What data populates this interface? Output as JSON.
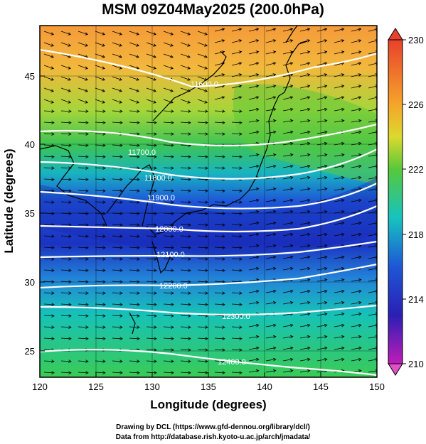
{
  "title": "MSM 09Z04May2025 (200.0hPa)",
  "x_axis": {
    "label": "Longitude (degrees)",
    "ticks": [
      "120",
      "125",
      "130",
      "135",
      "140",
      "145",
      "150"
    ]
  },
  "y_axis": {
    "label": "Latitude  (degrees)",
    "ticks": [
      "25",
      "30",
      "35",
      "40",
      "45"
    ]
  },
  "colorbar": {
    "ticks": [
      "230",
      "226",
      "222",
      "218",
      "214",
      "210"
    ],
    "range": [
      210,
      230
    ]
  },
  "contours": [
    {
      "label": "11600.0",
      "level": 11600
    },
    {
      "label": "11700.0",
      "level": 11700
    },
    {
      "label": "11800.0",
      "level": 11800
    },
    {
      "label": "11900.0",
      "level": 11900
    },
    {
      "label": "12000.0",
      "level": 12000
    },
    {
      "label": "12100.0",
      "level": 12100
    },
    {
      "label": "12200.0",
      "level": 12200
    },
    {
      "label": "12300.0",
      "level": 12300
    },
    {
      "label": "12400.0",
      "level": 12400
    }
  ],
  "credits": {
    "line1": "Drawing by DCL (https://www.gfd-dennou.org/library/dcl/)",
    "line2": "Data from http://database.rish.kyoto-u.ac.jp/arch/jmadata/"
  }
}
